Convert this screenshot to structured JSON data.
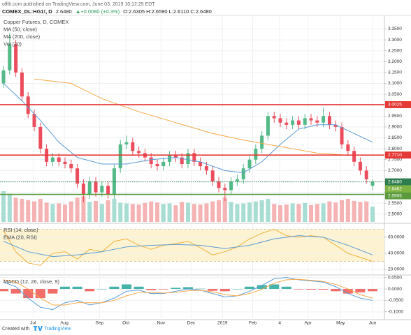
{
  "header": {
    "published": "olfth.com published on TradingView.com, June 03, 2019 10:12:25 EDT",
    "symbol": "COMEX_DL:HG1!, D",
    "last": "2.6480",
    "change": "▲+0.0080 (+0.3%)",
    "ohlc": "O:2.6305 H:2.6590 L:2.6110 C:2.6480"
  },
  "chart_data": [
    {
      "type": "candlestick",
      "title": "Copper Futures, D, COMEX",
      "grid": true,
      "xlim": [
        -0.57,
        61.93
      ],
      "xticks": [
        {
          "value": 4.8,
          "label": "Jul"
        },
        {
          "value": 9.9,
          "label": "Aug"
        },
        {
          "value": 15.6,
          "label": "Sep"
        },
        {
          "value": 19.9,
          "label": "Oct"
        },
        {
          "value": 25.6,
          "label": "Nov"
        },
        {
          "value": 30.5,
          "label": "Dec"
        },
        {
          "value": 35.6,
          "label": "2019"
        },
        {
          "value": 40.5,
          "label": "Feb"
        },
        {
          "value": 44.9,
          "label": "4"
        },
        {
          "value": 49.5,
          "label": "Apr"
        },
        {
          "value": 54.8,
          "label": "May"
        },
        {
          "value": 60,
          "label": "Jun"
        }
      ],
      "ylim": [
        2.464,
        3.406
      ],
      "yticks": [
        {
          "value": 2.5,
          "label": "2.5000"
        },
        {
          "value": 2.55,
          "label": "2.5500"
        },
        {
          "value": 2.6,
          "label": "2.6000"
        },
        {
          "value": 2.65,
          "label": "2.6500"
        },
        {
          "value": 2.7,
          "label": "2.7000"
        },
        {
          "value": 2.75,
          "label": "2.7500"
        },
        {
          "value": 2.8,
          "label": "2.8000"
        },
        {
          "value": 2.85,
          "label": "2.8500"
        },
        {
          "value": 2.9,
          "label": "2.9000"
        },
        {
          "value": 2.95,
          "label": "2.9500"
        },
        {
          "value": 3.0,
          "label": "3.0000"
        },
        {
          "value": 3.05,
          "label": "3.0500"
        },
        {
          "value": 3.1,
          "label": "3.1000"
        },
        {
          "value": 3.15,
          "label": "3.1500"
        },
        {
          "value": 3.2,
          "label": "3.2000"
        },
        {
          "value": 3.25,
          "label": "3.2500"
        },
        {
          "value": 3.3,
          "label": "3.3000"
        },
        {
          "value": 3.35,
          "label": "3.3500"
        }
      ],
      "up_color": "#53b987",
      "down_color": "#eb4d5c",
      "open": [
        3.1,
        3.16,
        3.28,
        3.15,
        3.04,
        2.96,
        2.9,
        2.8,
        2.74,
        2.76,
        2.74,
        2.73,
        2.71,
        2.64,
        2.59,
        2.65,
        2.6,
        2.63,
        2.59,
        2.71,
        2.82,
        2.83,
        2.79,
        2.78,
        2.76,
        2.73,
        2.72,
        2.74,
        2.77,
        2.76,
        2.73,
        2.78,
        2.74,
        2.72,
        2.7,
        2.65,
        2.62,
        2.61,
        2.65,
        2.66,
        2.71,
        2.75,
        2.8,
        2.86,
        2.95,
        2.94,
        2.92,
        2.91,
        2.93,
        2.91,
        2.94,
        2.93,
        2.92,
        2.95,
        2.91,
        2.9,
        2.82,
        2.79,
        2.74,
        2.7,
        2.6305
      ],
      "high": [
        3.18,
        3.33,
        3.3,
        3.17,
        3.06,
        2.98,
        2.92,
        2.82,
        2.78,
        2.78,
        2.76,
        2.75,
        2.73,
        2.66,
        2.67,
        2.67,
        2.65,
        2.65,
        2.73,
        2.84,
        2.86,
        2.85,
        2.81,
        2.8,
        2.78,
        2.75,
        2.76,
        2.79,
        2.79,
        2.78,
        2.8,
        2.8,
        2.76,
        2.74,
        2.72,
        2.67,
        2.64,
        2.67,
        2.68,
        2.73,
        2.77,
        2.82,
        2.88,
        2.97,
        2.97,
        2.96,
        2.94,
        2.95,
        2.95,
        2.96,
        2.96,
        2.95,
        2.99,
        2.97,
        2.93,
        2.92,
        2.84,
        2.81,
        2.76,
        2.72,
        2.659
      ],
      "low": [
        3.08,
        3.14,
        3.13,
        3.02,
        2.94,
        2.88,
        2.78,
        2.72,
        2.72,
        2.72,
        2.71,
        2.69,
        2.62,
        2.555,
        2.57,
        2.58,
        2.58,
        2.57,
        2.57,
        2.69,
        2.8,
        2.77,
        2.76,
        2.74,
        2.71,
        2.7,
        2.7,
        2.72,
        2.74,
        2.71,
        2.71,
        2.72,
        2.7,
        2.68,
        2.63,
        2.6,
        2.56,
        2.59,
        2.63,
        2.64,
        2.69,
        2.73,
        2.78,
        2.84,
        2.92,
        2.9,
        2.89,
        2.89,
        2.89,
        2.89,
        2.91,
        2.9,
        2.9,
        2.89,
        2.88,
        2.8,
        2.77,
        2.72,
        2.68,
        2.64,
        2.611
      ],
      "close": [
        3.16,
        3.28,
        3.15,
        3.04,
        2.96,
        2.9,
        2.8,
        2.74,
        2.76,
        2.74,
        2.73,
        2.71,
        2.64,
        2.59,
        2.65,
        2.6,
        2.63,
        2.59,
        2.71,
        2.82,
        2.83,
        2.79,
        2.78,
        2.76,
        2.73,
        2.72,
        2.74,
        2.77,
        2.76,
        2.73,
        2.78,
        2.74,
        2.72,
        2.7,
        2.65,
        2.62,
        2.61,
        2.65,
        2.66,
        2.71,
        2.75,
        2.8,
        2.86,
        2.95,
        2.94,
        2.92,
        2.91,
        2.93,
        2.91,
        2.94,
        2.93,
        2.92,
        2.95,
        2.91,
        2.9,
        2.82,
        2.79,
        2.74,
        2.7,
        2.66,
        2.648
      ],
      "volume": {
        "name": "Vol (20)",
        "lim": [
          0,
          800000
        ],
        "up_color": "#a8ddd3",
        "down_color": "#f5b3b3",
        "values": [
          120000,
          110000,
          95000,
          90000,
          85000,
          80000,
          90000,
          75000,
          70000,
          72000,
          68000,
          80000,
          95000,
          100000,
          78000,
          82000,
          70000,
          85000,
          90000,
          75000,
          72000,
          70000,
          68000,
          74000,
          80000,
          76000,
          70000,
          72000,
          65000,
          78000,
          75000,
          70000,
          68000,
          72000,
          80000,
          85000,
          95000,
          78000,
          70000,
          72000,
          76000,
          80000,
          85000,
          90000,
          70000,
          65000,
          68000,
          72000,
          70000,
          74000,
          66000,
          70000,
          72000,
          80000,
          76000,
          85000,
          90000,
          82000,
          78000,
          80000,
          60000
        ]
      },
      "series": [
        {
          "name": "MA (50, close)",
          "color": "#5b9bd5",
          "x": [
            0,
            3,
            6,
            9,
            12,
            16,
            20,
            24,
            28,
            32,
            36,
            39,
            42,
            45,
            48,
            51,
            54,
            57,
            60
          ],
          "values": [
            3.1,
            3.02,
            2.93,
            2.83,
            2.76,
            2.73,
            2.73,
            2.75,
            2.76,
            2.74,
            2.7,
            2.69,
            2.74,
            2.82,
            2.89,
            2.91,
            2.91,
            2.87,
            2.83
          ]
        },
        {
          "name": "MA (200, close)",
          "color": "#f5a84a",
          "x": [
            5,
            11,
            16,
            22,
            28,
            34,
            39,
            45,
            51,
            56,
            60
          ],
          "values": [
            3.12,
            3.1,
            3.03,
            2.97,
            2.92,
            2.87,
            2.84,
            2.81,
            2.78,
            2.77,
            2.77
          ]
        }
      ],
      "levels": [
        {
          "value": 3.0025,
          "label": "3.0025",
          "color": "#e53935",
          "style": "solid"
        },
        {
          "value": 2.771,
          "label": "2.7710",
          "color": "#e53935",
          "style": "solid"
        },
        {
          "value": 2.648,
          "label": "2.6480",
          "color": "#2e7d4f",
          "style": "dotted"
        },
        {
          "value": 2.6462,
          "label": "2.6462",
          "color": "#7cb342",
          "style": "none"
        },
        {
          "value": 2.5905,
          "label": "2.5905",
          "color": "#5a9a3c",
          "style": "solid"
        }
      ]
    },
    {
      "type": "line",
      "grid": true,
      "ylim": [
        14.8,
        75.6
      ],
      "yticks": [
        {
          "value": 20,
          "label": "20.0000"
        },
        {
          "value": 40,
          "label": "40.0000"
        },
        {
          "value": 60,
          "label": "60.0000"
        }
      ],
      "band": [
        30,
        70
      ],
      "band_color": "#fdf3d2",
      "series": [
        {
          "name": "RSI (14, close)",
          "color": "#f3b23a",
          "x": [
            0,
            2,
            4,
            6,
            8,
            10,
            12,
            14,
            16,
            18,
            20,
            22,
            24,
            26,
            28,
            30,
            32,
            34,
            36,
            38,
            40,
            42,
            44,
            46,
            48,
            50,
            52,
            54,
            56,
            58,
            60
          ],
          "values": [
            68,
            42,
            28,
            25,
            40,
            42,
            33,
            45,
            42,
            55,
            58,
            50,
            45,
            50,
            52,
            55,
            47,
            38,
            42,
            48,
            58,
            65,
            70,
            62,
            60,
            62,
            60,
            50,
            40,
            35,
            30
          ]
        },
        {
          "name": "EMA (20, RSI)",
          "color": "#5b9bd5",
          "x": [
            0,
            4,
            8,
            12,
            16,
            20,
            24,
            28,
            32,
            36,
            40,
            44,
            48,
            52,
            56,
            60
          ],
          "values": [
            55,
            42,
            36,
            38,
            42,
            48,
            50,
            51,
            50,
            46,
            50,
            58,
            62,
            60,
            50,
            38
          ]
        }
      ]
    },
    {
      "type": "macd",
      "title": "MACD (12, 26, close, 9)",
      "grid": true,
      "ylim": [
        -0.128,
        0.055
      ],
      "yticks": [
        {
          "value": -0.1,
          "label": "-0.1000"
        },
        {
          "value": -0.05,
          "label": "-0.0500"
        },
        {
          "value": 0,
          "label": "0.0000"
        },
        {
          "value": 0.05,
          "label": "0.0500"
        }
      ],
      "histogram": {
        "up_color": "#26a69a",
        "down_color": "#ef5350",
        "x": [
          0,
          2,
          4,
          6,
          8,
          10,
          12,
          14,
          16,
          18,
          20,
          22,
          24,
          26,
          28,
          30,
          32,
          34,
          36,
          38,
          40,
          42,
          44,
          46,
          48,
          50,
          52,
          54,
          56,
          58,
          60
        ],
        "values": [
          -0.01,
          -0.02,
          -0.04,
          -0.04,
          -0.02,
          0.01,
          0.01,
          -0.01,
          0,
          0.01,
          0.02,
          0.01,
          -0.005,
          -0.002,
          0.005,
          0.008,
          0.001,
          -0.008,
          -0.01,
          0,
          0.01,
          0.017,
          0.02,
          0.01,
          -0.002,
          -0.003,
          -0.003,
          -0.01,
          -0.02,
          -0.015,
          -0.01
        ]
      },
      "lines": [
        {
          "color": "#5b9bd5",
          "x": [
            0,
            2,
            4,
            6,
            8,
            10,
            12,
            14,
            16,
            18,
            20,
            22,
            24,
            26,
            28,
            30,
            32,
            34,
            36,
            38,
            40,
            42,
            44,
            46,
            48,
            50,
            52,
            54,
            56,
            58,
            60
          ],
          "values": [
            0.03,
            0.01,
            -0.04,
            -0.08,
            -0.09,
            -0.06,
            -0.05,
            -0.07,
            -0.06,
            -0.04,
            -0.01,
            -0.005,
            -0.02,
            -0.02,
            -0.01,
            0,
            -0.005,
            -0.02,
            -0.035,
            -0.03,
            -0.01,
            0.015,
            0.045,
            0.05,
            0.04,
            0.035,
            0.03,
            0.01,
            -0.02,
            -0.04,
            -0.05
          ]
        },
        {
          "color": "#f5a84a",
          "x": [
            0,
            2,
            4,
            6,
            8,
            10,
            12,
            14,
            16,
            18,
            20,
            22,
            24,
            26,
            28,
            30,
            32,
            34,
            36,
            38,
            40,
            42,
            44,
            46,
            48,
            50,
            52,
            54,
            56,
            58,
            60
          ],
          "values": [
            0.04,
            0.03,
            0,
            -0.04,
            -0.07,
            -0.07,
            -0.06,
            -0.06,
            -0.06,
            -0.05,
            -0.03,
            -0.015,
            -0.015,
            -0.018,
            -0.015,
            -0.008,
            -0.006,
            -0.012,
            -0.025,
            -0.03,
            -0.02,
            -0.002,
            0.025,
            0.04,
            0.042,
            0.038,
            0.033,
            0.02,
            0,
            -0.025,
            -0.04
          ]
        }
      ]
    }
  ],
  "footer": {
    "text": "Created with",
    "brand": "TradingView"
  }
}
